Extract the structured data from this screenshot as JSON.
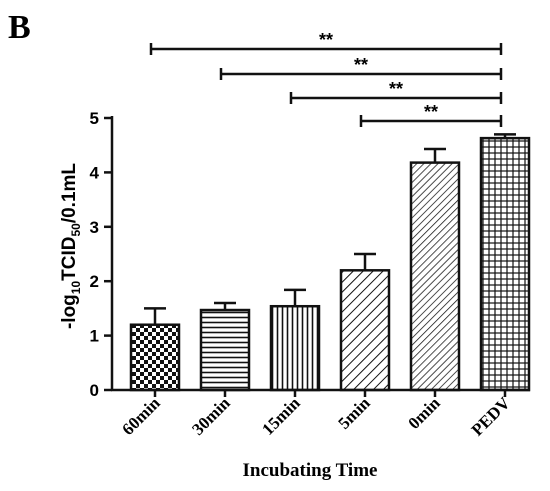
{
  "panel_label": "B",
  "chart_data": {
    "type": "bar",
    "categories": [
      "60min",
      "30min",
      "15min",
      "5min",
      "0min",
      "PEDV"
    ],
    "values": [
      1.2,
      1.47,
      1.54,
      2.2,
      4.18,
      4.63
    ],
    "errors": [
      0.3,
      0.13,
      0.3,
      0.3,
      0.25,
      0.07
    ],
    "patterns": [
      "checker",
      "horizontal",
      "vertical",
      "diagonal",
      "diagonal-dense",
      "grid"
    ],
    "ylim": [
      0,
      5
    ],
    "yticks": [
      0,
      1,
      2,
      3,
      4,
      5
    ],
    "ylabel_parts": [
      "-log",
      "10",
      "TCID",
      "50",
      "/0.1mL"
    ],
    "xlabel": "Incubating Time",
    "significance": [
      {
        "from": "60min",
        "to": "PEDV",
        "label": "**"
      },
      {
        "from": "30min",
        "to": "PEDV",
        "label": "**"
      },
      {
        "from": "15min",
        "to": "PEDV",
        "label": "**"
      },
      {
        "from": "5min",
        "to": "PEDV",
        "label": "**"
      }
    ]
  }
}
